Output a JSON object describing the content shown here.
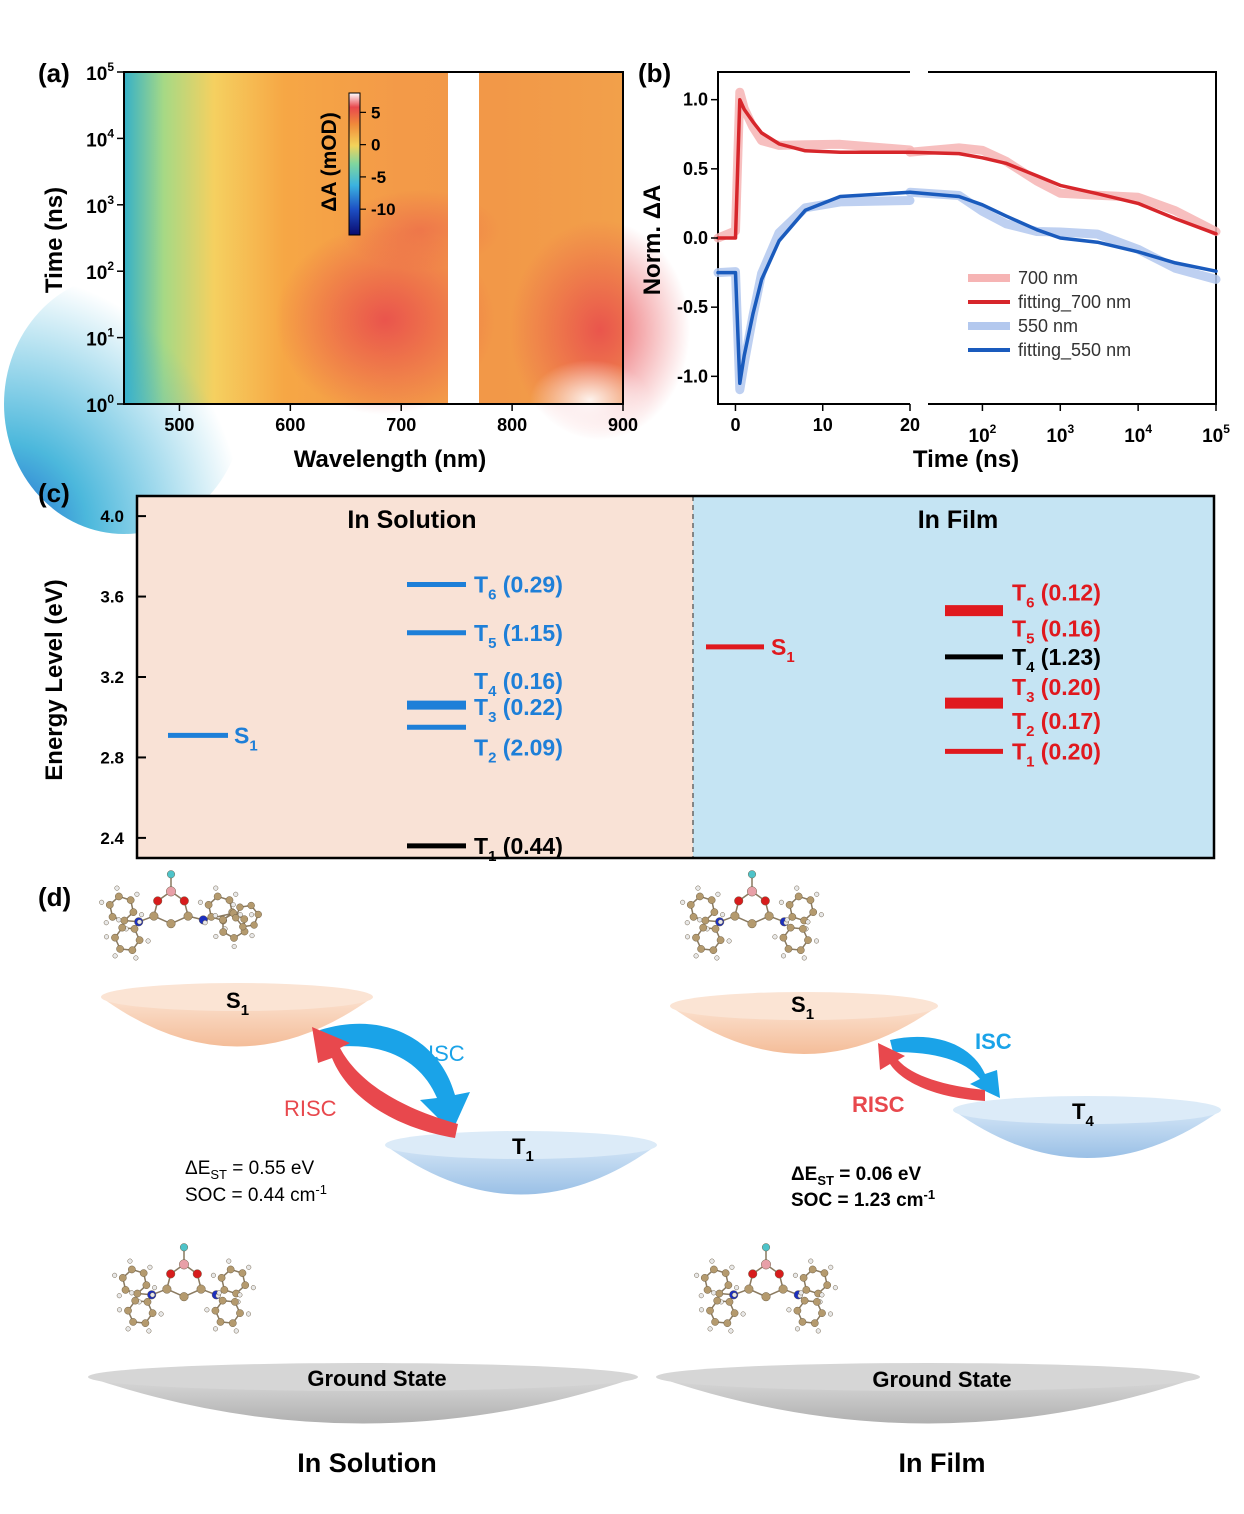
{
  "panel_labels": {
    "a": "(a)",
    "b": "(b)",
    "c": "(c)",
    "d": "(d)"
  },
  "chart_data": [
    {
      "type": "heatmap",
      "xlabel": "Wavelength (nm)",
      "ylabel": "Time (ns)",
      "xlim": [
        450,
        900
      ],
      "ylim": [
        1,
        100000
      ],
      "y_scale": "log",
      "x_ticks": [
        "500",
        "600",
        "700",
        "800",
        "900"
      ],
      "y_ticks": [
        {
          "base": "10",
          "exp": "0"
        },
        {
          "base": "10",
          "exp": "1"
        },
        {
          "base": "10",
          "exp": "2"
        },
        {
          "base": "10",
          "exp": "3"
        },
        {
          "base": "10",
          "exp": "4"
        },
        {
          "base": "10",
          "exp": "5"
        }
      ],
      "colorbar": {
        "label": "ΔA (mOD)",
        "ticks": [
          "5",
          "0",
          "-5",
          "-10"
        ],
        "range": [
          -14,
          8
        ]
      },
      "masked_band_nm": [
        744,
        772
      ],
      "colors": {
        "low": "#1a2fa0",
        "mid": "#f6a745",
        "high": "#ffffff",
        "accent": "#e8484d"
      }
    },
    {
      "type": "line",
      "ylabel": "Norm. ΔA",
      "xlabel": "Time (ns)",
      "ylim": [
        -1.2,
        1.2
      ],
      "y_ticks": [
        "1.0",
        "0.5",
        "0.0",
        "-0.5",
        "-1.0"
      ],
      "x_linear_ticks": [
        "0",
        "10",
        "20"
      ],
      "x_log_ticks": [
        {
          "base": "10",
          "exp": "2"
        },
        {
          "base": "10",
          "exp": "3"
        },
        {
          "base": "10",
          "exp": "4"
        },
        {
          "base": "10",
          "exp": "5"
        }
      ],
      "x_linear_range": [
        -2,
        20
      ],
      "x_log_range": [
        20,
        100000
      ],
      "series": [
        {
          "name": "700 nm",
          "color": "#f6b4b4",
          "points": [
            [
              -2,
              0.0
            ],
            [
              0,
              0.0
            ],
            [
              0.5,
              1.0
            ],
            [
              1,
              0.93
            ],
            [
              2,
              0.85
            ],
            [
              3,
              0.76
            ],
            [
              5,
              0.68
            ],
            [
              8,
              0.63
            ],
            [
              12,
              0.62
            ],
            [
              20,
              0.62
            ],
            [
              50,
              0.6
            ],
            [
              100,
              0.58
            ],
            [
              200,
              0.55
            ],
            [
              500,
              0.46
            ],
            [
              1000,
              0.38
            ],
            [
              3000,
              0.32
            ],
            [
              10000,
              0.25
            ],
            [
              30000,
              0.14
            ],
            [
              100000,
              0.03
            ]
          ]
        },
        {
          "name": "fitting_700 nm",
          "color": "#d7262b",
          "points": [
            [
              -2,
              0.0
            ],
            [
              0,
              0.0
            ],
            [
              0.5,
              1.0
            ],
            [
              1,
              0.93
            ],
            [
              2,
              0.84
            ],
            [
              3,
              0.76
            ],
            [
              5,
              0.68
            ],
            [
              8,
              0.63
            ],
            [
              12,
              0.62
            ],
            [
              20,
              0.62
            ],
            [
              50,
              0.61
            ],
            [
              100,
              0.58
            ],
            [
              200,
              0.54
            ],
            [
              500,
              0.45
            ],
            [
              1000,
              0.38
            ],
            [
              3000,
              0.32
            ],
            [
              10000,
              0.25
            ],
            [
              30000,
              0.14
            ],
            [
              100000,
              0.03
            ]
          ]
        },
        {
          "name": "550 nm",
          "color": "#b3c8ee",
          "points": [
            [
              -2,
              -0.25
            ],
            [
              0,
              -0.25
            ],
            [
              0.5,
              -1.05
            ],
            [
              1,
              -0.85
            ],
            [
              2,
              -0.55
            ],
            [
              3,
              -0.3
            ],
            [
              5,
              -0.02
            ],
            [
              8,
              0.2
            ],
            [
              12,
              0.3
            ],
            [
              20,
              0.33
            ],
            [
              50,
              0.3
            ],
            [
              100,
              0.24
            ],
            [
              200,
              0.16
            ],
            [
              500,
              0.06
            ],
            [
              1000,
              0.0
            ],
            [
              3000,
              -0.03
            ],
            [
              10000,
              -0.1
            ],
            [
              30000,
              -0.18
            ],
            [
              100000,
              -0.24
            ]
          ]
        },
        {
          "name": "fitting_550 nm",
          "color": "#1a5bbd",
          "points": [
            [
              -2,
              -0.25
            ],
            [
              0,
              -0.25
            ],
            [
              0.5,
              -1.05
            ],
            [
              1,
              -0.85
            ],
            [
              2,
              -0.55
            ],
            [
              3,
              -0.3
            ],
            [
              5,
              -0.02
            ],
            [
              8,
              0.2
            ],
            [
              12,
              0.3
            ],
            [
              20,
              0.33
            ],
            [
              50,
              0.3
            ],
            [
              100,
              0.24
            ],
            [
              200,
              0.16
            ],
            [
              500,
              0.06
            ],
            [
              1000,
              0.0
            ],
            [
              3000,
              -0.03
            ],
            [
              10000,
              -0.1
            ],
            [
              30000,
              -0.18
            ],
            [
              100000,
              -0.24
            ]
          ]
        }
      ]
    },
    {
      "type": "energy-level",
      "ylabel": "Energy Level (eV)",
      "ylim": [
        2.3,
        4.1
      ],
      "y_ticks": [
        "4.0",
        "3.6",
        "3.2",
        "2.8",
        "2.4"
      ],
      "sections": [
        {
          "title": "In Solution",
          "bg": "#f9e2d6",
          "levels": [
            {
              "state": "S",
              "sub": "1",
              "val": "",
              "energy": 2.91,
              "color": "#1e7fd8",
              "side": "S"
            },
            {
              "state": "T",
              "sub": "6",
              "val": " (0.29)",
              "energy": 3.66,
              "color": "#1e7fd8"
            },
            {
              "state": "T",
              "sub": "5",
              "val": " (1.15)",
              "energy": 3.42,
              "color": "#1e7fd8"
            },
            {
              "state": "T",
              "sub": "4",
              "val": " (0.16)",
              "energy": 3.07,
              "color": "#1e7fd8"
            },
            {
              "state": "T",
              "sub": "3",
              "val": " (0.22)",
              "energy": 3.05,
              "color": "#1e7fd8"
            },
            {
              "state": "T",
              "sub": "2",
              "val": " (2.09)",
              "energy": 2.95,
              "color": "#1e7fd8"
            },
            {
              "state": "T",
              "sub": "1",
              "val": " (0.44)",
              "energy": 2.36,
              "color": "#000000"
            }
          ]
        },
        {
          "title": "In Film",
          "bg": "#c5e4f3",
          "levels": [
            {
              "state": "S",
              "sub": "1",
              "val": "",
              "energy": 3.35,
              "color": "#e0191e",
              "side": "S"
            },
            {
              "state": "T",
              "sub": "6",
              "val": " (0.12)",
              "energy": 3.54,
              "color": "#e0191e"
            },
            {
              "state": "T",
              "sub": "5",
              "val": " (0.16)",
              "energy": 3.52,
              "color": "#e0191e"
            },
            {
              "state": "T",
              "sub": "4",
              "val": " (1.23)",
              "energy": 3.3,
              "color": "#000000"
            },
            {
              "state": "T",
              "sub": "3",
              "val": " (0.20)",
              "energy": 3.08,
              "color": "#e0191e"
            },
            {
              "state": "T",
              "sub": "2",
              "val": " (0.17)",
              "energy": 3.06,
              "color": "#e0191e"
            },
            {
              "state": "T",
              "sub": "1",
              "val": " (0.20)",
              "energy": 2.83,
              "color": "#e0191e"
            }
          ]
        }
      ]
    }
  ],
  "diagram": {
    "left": {
      "s1": {
        "letter": "S",
        "sub": "1"
      },
      "t": {
        "letter": "T",
        "sub": "1"
      },
      "isc": "ISC",
      "risc": "RISC",
      "dest_prefix": "ΔE",
      "dest_sub": "ST",
      "dest_value": " = 0.55 eV",
      "soc_prefix": "SOC = 0.44 cm",
      "soc_exp": "-1",
      "ground": "Ground State",
      "caption": "In Solution"
    },
    "right": {
      "s1": {
        "letter": "S",
        "sub": "1"
      },
      "t": {
        "letter": "T",
        "sub": "4"
      },
      "isc": "ISC",
      "risc": "RISC",
      "dest_prefix": "ΔE",
      "dest_sub": "ST",
      "dest_value": " = 0.06 eV",
      "soc_prefix": "SOC = 1.23 cm",
      "soc_exp": "-1",
      "ground": "Ground State",
      "caption": "In Film"
    },
    "colors": {
      "s1_disk": "#f6c7a9",
      "t_disk": "#a9c9ea",
      "ground_disk": "#c8c8c8",
      "isc": "#1aa3e8",
      "risc": "#e8484d",
      "atom_c": "#b49a6e",
      "atom_n": "#1b2fbf",
      "atom_o": "#d71c1c",
      "atom_b": "#e8a0a8",
      "atom_f": "#4ec3c9"
    }
  }
}
